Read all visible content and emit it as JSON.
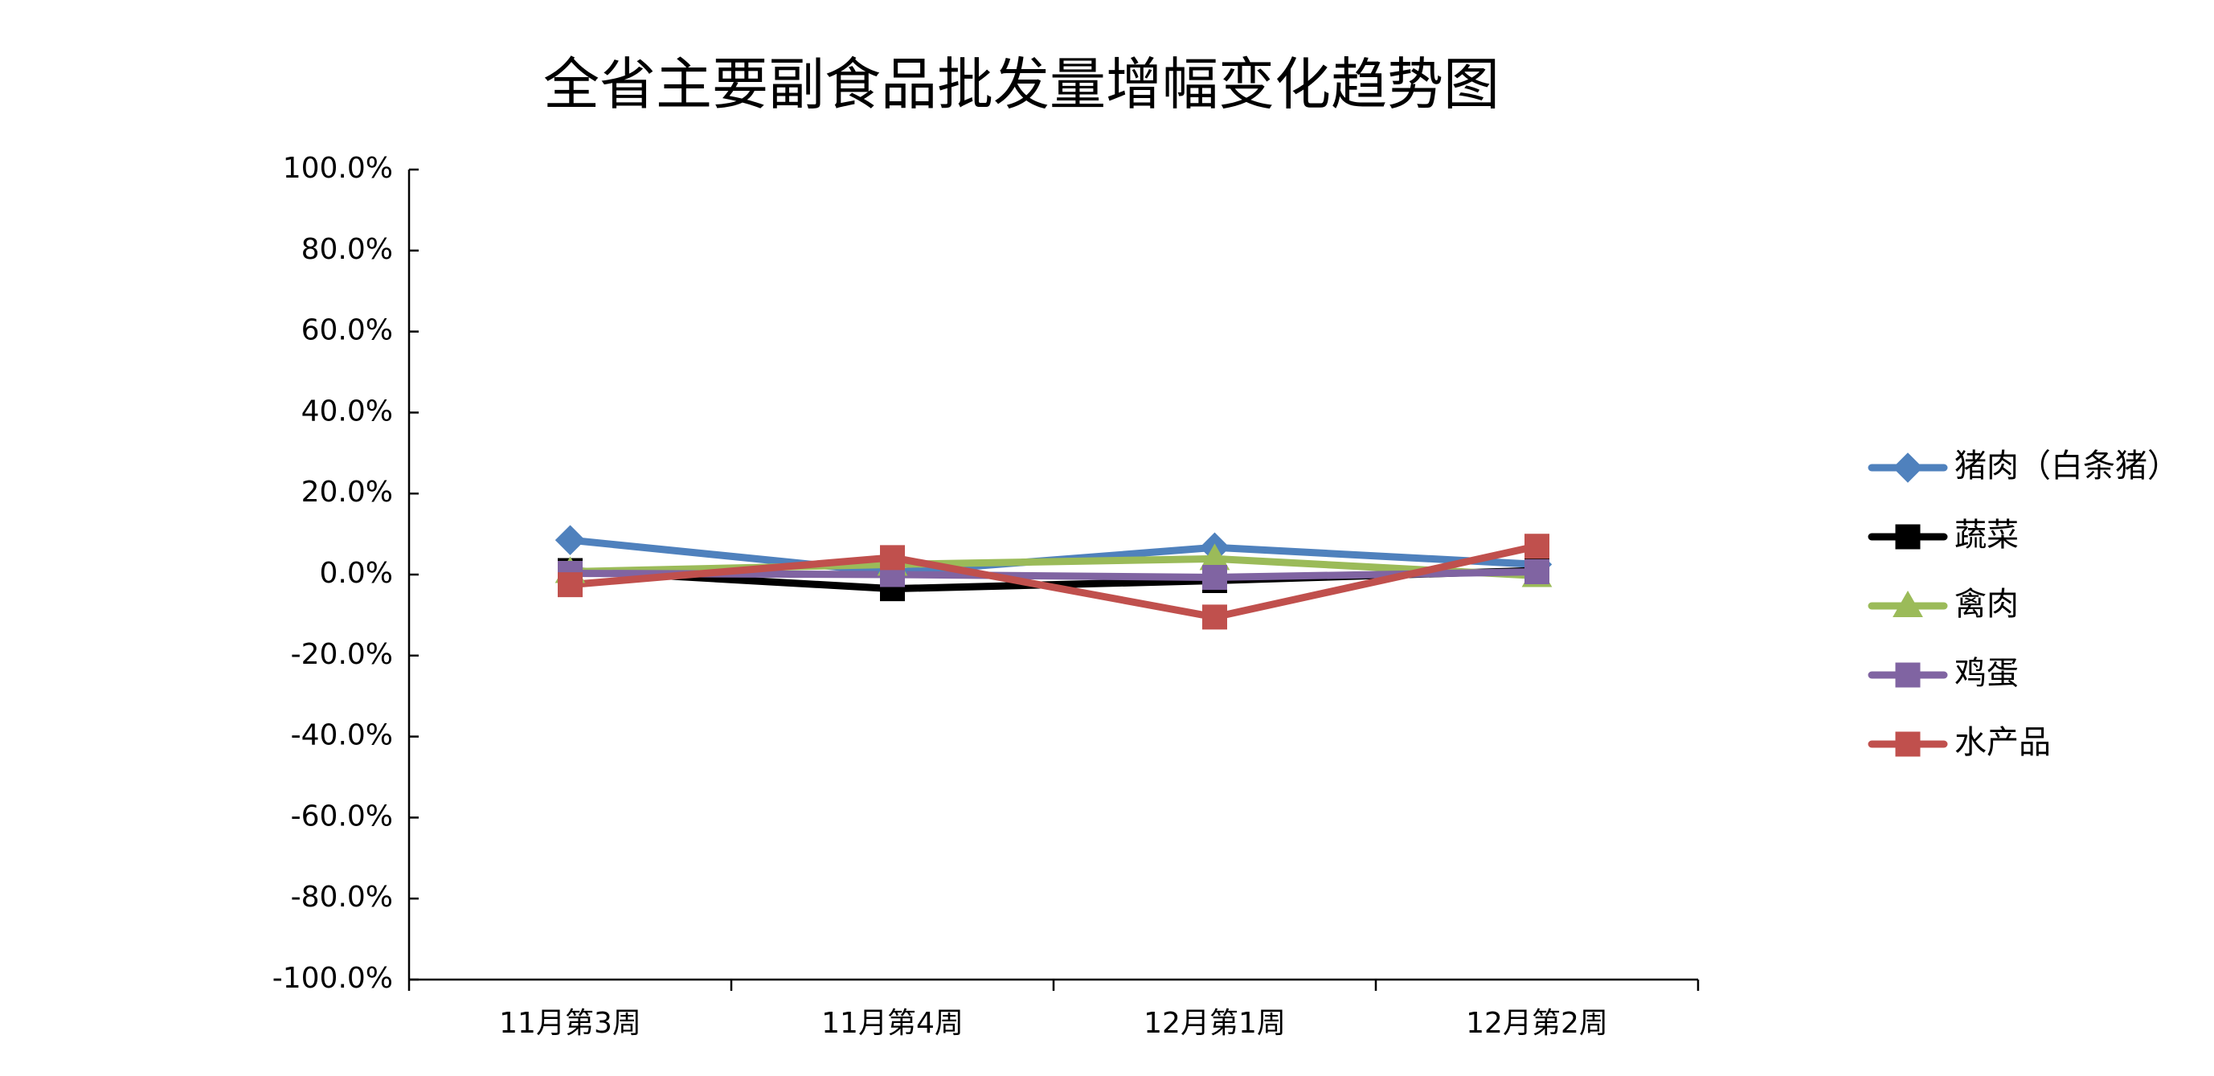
{
  "chart_data": {
    "type": "line",
    "title": "全省主要副食品批发量增幅变化趋势图",
    "categories": [
      "11月第3周",
      "11月第4周",
      "12月第1周",
      "12月第2周"
    ],
    "series": [
      {
        "name": "猪肉（白条猪）",
        "color": "#4f81bd",
        "marker": "diamond",
        "values": [
          8.5,
          0.5,
          6.7,
          2.5
        ]
      },
      {
        "name": "蔬菜",
        "color": "#000000",
        "marker": "square",
        "values": [
          1.0,
          -3.5,
          -1.5,
          1.0
        ]
      },
      {
        "name": "禽肉",
        "color": "#9bbb59",
        "marker": "triangle",
        "values": [
          0.7,
          2.5,
          3.9,
          -0.3
        ]
      },
      {
        "name": "鸡蛋",
        "color": "#8064a2",
        "marker": "square",
        "values": [
          0.3,
          0.0,
          -0.7,
          0.7
        ]
      },
      {
        "name": "水产品",
        "color": "#c0504d",
        "marker": "square",
        "values": [
          -2.5,
          4.2,
          -10.5,
          7.0
        ]
      }
    ],
    "ylim": [
      -100,
      100
    ],
    "yticks": [
      {
        "value": -100,
        "label": "-100.0%"
      },
      {
        "value": -80,
        "label": "-80.0%"
      },
      {
        "value": -60,
        "label": "-60.0%"
      },
      {
        "value": -40,
        "label": "-40.0%"
      },
      {
        "value": -20,
        "label": "-20.0%"
      },
      {
        "value": 0,
        "label": "0.0%"
      },
      {
        "value": 20,
        "label": "20.0%"
      },
      {
        "value": 40,
        "label": "40.0%"
      },
      {
        "value": 60,
        "label": "60.0%"
      },
      {
        "value": 80,
        "label": "80.0%"
      },
      {
        "value": 100,
        "label": "100.0%"
      }
    ],
    "grid": false,
    "legend": "right"
  }
}
